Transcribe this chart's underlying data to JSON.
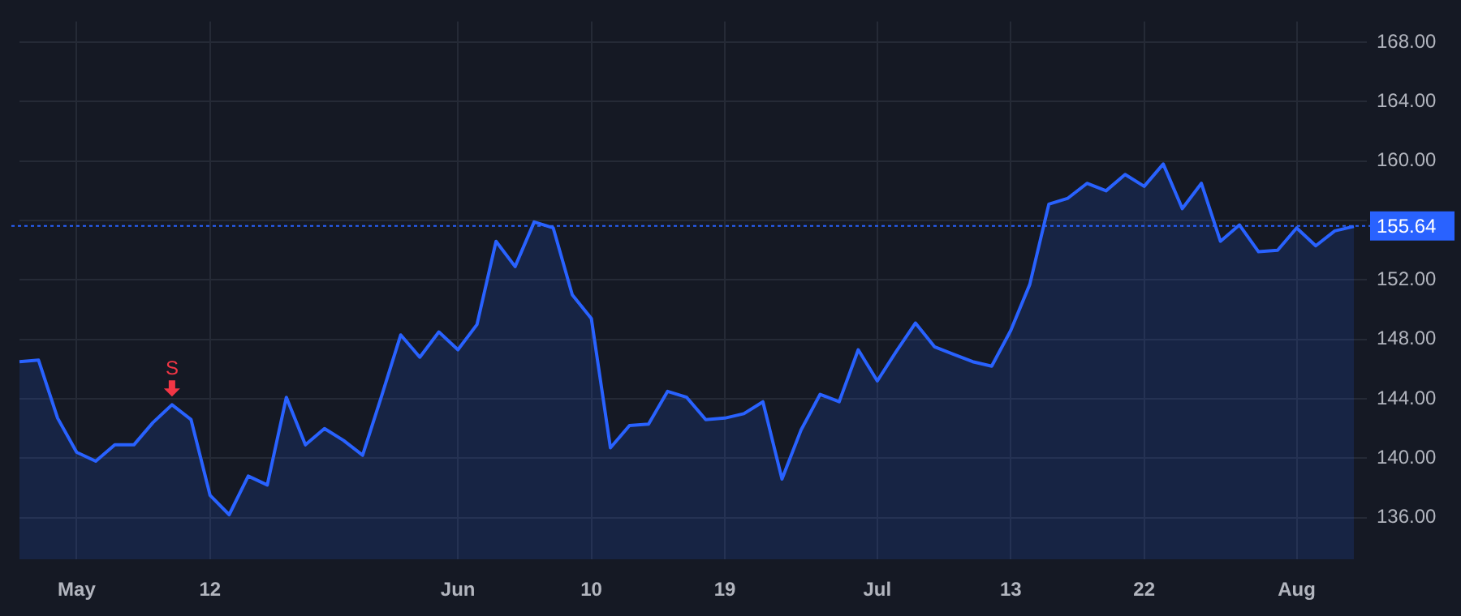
{
  "chart_data": {
    "type": "area",
    "categories": [
      null,
      null,
      null,
      "May",
      null,
      null,
      null,
      null,
      null,
      null,
      "12",
      null,
      null,
      null,
      null,
      null,
      null,
      null,
      null,
      null,
      null,
      null,
      null,
      "Jun",
      null,
      null,
      null,
      null,
      null,
      null,
      "10",
      null,
      null,
      null,
      null,
      null,
      null,
      "19",
      null,
      null,
      null,
      null,
      null,
      null,
      null,
      "Jul",
      null,
      null,
      null,
      null,
      null,
      null,
      "13",
      null,
      null,
      null,
      null,
      null,
      null,
      "22",
      null,
      null,
      null,
      null,
      null,
      null,
      null,
      "Aug",
      null,
      null,
      null
    ],
    "series": [
      {
        "color": "#2962ff",
        "values": [
          146.5,
          146.6,
          142.7,
          140.4,
          139.8,
          140.9,
          140.9,
          142.4,
          143.6,
          142.6,
          137.5,
          136.2,
          138.8,
          138.2,
          144.1,
          140.9,
          142.0,
          141.2,
          140.2,
          144.2,
          148.3,
          146.8,
          148.5,
          147.3,
          149.0,
          154.6,
          152.9,
          155.9,
          155.5,
          151.0,
          149.4,
          140.7,
          142.2,
          142.3,
          144.5,
          144.1,
          142.6,
          142.7,
          143.0,
          143.8,
          138.6,
          141.9,
          144.3,
          143.8,
          147.3,
          145.2,
          147.2,
          149.1,
          147.5,
          147.0,
          146.5,
          146.2,
          148.6,
          151.7,
          157.1,
          157.5,
          158.5,
          158.0,
          159.1,
          158.3,
          159.8,
          156.8,
          158.5,
          154.6,
          155.7,
          153.9,
          154.0,
          155.5,
          154.3,
          155.3,
          155.6
        ]
      }
    ],
    "ylim": [
      133.2,
      169.4
    ],
    "yticks": [
      {
        "value": 136,
        "label": "136.00"
      },
      {
        "value": 140,
        "label": "140.00"
      },
      {
        "value": 144,
        "label": "144.00"
      },
      {
        "value": 148,
        "label": "148.00"
      },
      {
        "value": 152,
        "label": "152.00"
      },
      {
        "value": 156,
        "label": null
      },
      {
        "value": 160,
        "label": "160.00"
      },
      {
        "value": 164,
        "label": "164.00"
      },
      {
        "value": 168,
        "label": "168.00"
      }
    ],
    "ref_lines": [
      {
        "axis": "y",
        "value": 155.64,
        "label": "155.64",
        "color": "#2962ff",
        "line_style": "dotted"
      }
    ],
    "annotations": [
      {
        "text": "S",
        "y": 143.6
      }
    ],
    "grid": true,
    "legend": false
  }
}
